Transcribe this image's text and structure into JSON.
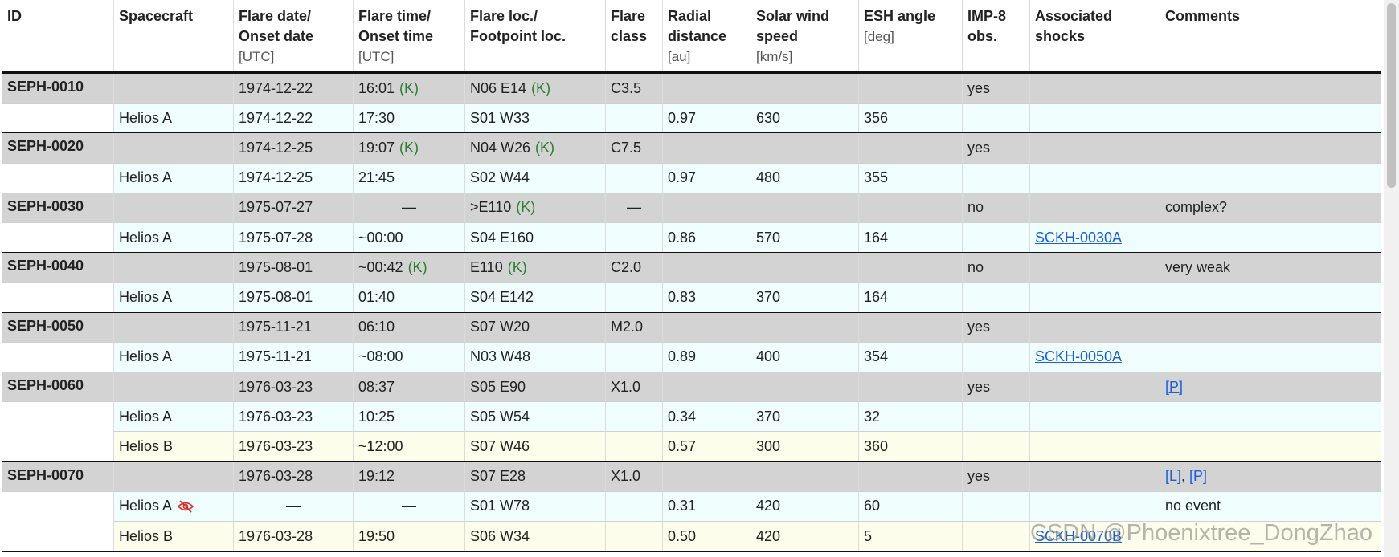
{
  "table": {
    "columns": [
      {
        "title": [
          "ID"
        ]
      },
      {
        "title": [
          "Spacecraft"
        ]
      },
      {
        "title": [
          "Flare date/",
          "Onset date"
        ],
        "unit": "[UTC]"
      },
      {
        "title": [
          "Flare time/",
          "Onset time"
        ],
        "unit": "[UTC]"
      },
      {
        "title": [
          "Flare loc./",
          "Footpoint loc."
        ]
      },
      {
        "title": [
          "Flare",
          "class"
        ]
      },
      {
        "title": [
          "Radial",
          "distance"
        ],
        "unit": "[au]"
      },
      {
        "title": [
          "Solar wind",
          "speed"
        ],
        "unit": "[km/s]"
      },
      {
        "title": [
          "ESH angle"
        ],
        "unit": "[deg]"
      },
      {
        "title": [
          "IMP-8",
          "obs."
        ]
      },
      {
        "title": [
          "Associated",
          "shocks"
        ]
      },
      {
        "title": [
          "Comments"
        ]
      }
    ],
    "event_color": "#d3d3d3",
    "groups": [
      {
        "event": [
          "SEPH-0010",
          null,
          "1974-12-22",
          {
            "text": "16:01",
            "note": "(K)"
          },
          {
            "text": "N06 E14",
            "note": "(K)"
          },
          "C3.5",
          null,
          null,
          null,
          "yes",
          null,
          null
        ],
        "spacecraft": [
          {
            "color": "#effdfd",
            "cells": [
              null,
              "Helios A",
              "1974-12-22",
              "17:30",
              "S01 W33",
              null,
              "0.97",
              "630",
              "356",
              null,
              null,
              null
            ]
          }
        ]
      },
      {
        "event": [
          "SEPH-0020",
          null,
          "1974-12-25",
          {
            "text": "19:07",
            "note": "(K)"
          },
          {
            "text": "N04 W26",
            "note": "(K)"
          },
          "C7.5",
          null,
          null,
          null,
          "yes",
          null,
          null
        ],
        "spacecraft": [
          {
            "color": "#effdfd",
            "cells": [
              null,
              "Helios A",
              "1974-12-25",
              "21:45",
              "S02 W44",
              null,
              "0.97",
              "480",
              "355",
              null,
              null,
              null
            ]
          }
        ]
      },
      {
        "event": [
          "SEPH-0030",
          null,
          "1975-07-27",
          {
            "text": "—",
            "align": "center"
          },
          {
            "text": ">E110",
            "note": "(K)"
          },
          {
            "text": "—",
            "align": "center"
          },
          null,
          null,
          null,
          "no",
          null,
          "complex?"
        ],
        "spacecraft": [
          {
            "color": "#effdfd",
            "cells": [
              null,
              "Helios A",
              "1975-07-28",
              "~00:00",
              "S04 E160",
              null,
              "0.86",
              "570",
              "164",
              null,
              {
                "links": [
                  "SCKH-0030A"
                ]
              },
              null
            ]
          }
        ]
      },
      {
        "event": [
          "SEPH-0040",
          null,
          "1975-08-01",
          {
            "text": "~00:42",
            "note": "(K)"
          },
          {
            "text": "E110",
            "note": "(K)"
          },
          "C2.0",
          null,
          null,
          null,
          "no",
          null,
          "very weak"
        ],
        "spacecraft": [
          {
            "color": "#effdfd",
            "cells": [
              null,
              "Helios A",
              "1975-08-01",
              "01:40",
              "S04 E142",
              null,
              "0.83",
              "370",
              "164",
              null,
              null,
              null
            ]
          }
        ]
      },
      {
        "event": [
          "SEPH-0050",
          null,
          "1975-11-21",
          "06:10",
          "S07 W20",
          "M2.0",
          null,
          null,
          null,
          "yes",
          null,
          null
        ],
        "spacecraft": [
          {
            "color": "#effdfd",
            "cells": [
              null,
              "Helios A",
              "1975-11-21",
              "~08:00",
              "N03 W48",
              null,
              "0.89",
              "400",
              "354",
              null,
              {
                "links": [
                  "SCKH-0050A"
                ]
              },
              null
            ]
          }
        ]
      },
      {
        "event": [
          "SEPH-0060",
          null,
          "1976-03-23",
          "08:37",
          "S05 E90",
          "X1.0",
          null,
          null,
          null,
          "yes",
          null,
          {
            "links": [
              "[P]"
            ]
          }
        ],
        "spacecraft": [
          {
            "color": "#effdfd",
            "cells": [
              null,
              "Helios A",
              "1976-03-23",
              "10:25",
              "S05 W54",
              null,
              "0.34",
              "370",
              "32",
              null,
              null,
              null
            ]
          },
          {
            "color": "#fdfdeb",
            "cells": [
              null,
              "Helios B",
              "1976-03-23",
              "~12:00",
              "S07 W46",
              null,
              "0.57",
              "300",
              "360",
              null,
              null,
              null
            ]
          }
        ]
      },
      {
        "event": [
          "SEPH-0070",
          null,
          "1976-03-28",
          "19:12",
          "S07 E28",
          "X1.0",
          null,
          null,
          null,
          "yes",
          null,
          {
            "links": [
              "[L]",
              "[P]"
            ],
            "sep": ", "
          }
        ],
        "spacecraft": [
          {
            "color": "#effdfd",
            "cells": [
              null,
              {
                "text": "Helios A",
                "icon": true
              },
              {
                "text": "—",
                "align": "center"
              },
              {
                "text": "—",
                "align": "center"
              },
              "S01 W78",
              null,
              "0.31",
              "420",
              "60",
              null,
              null,
              "no event"
            ]
          },
          {
            "color": "#fdfdeb",
            "cells": [
              null,
              "Helios B",
              "1976-03-28",
              "19:50",
              "S06 W34",
              null,
              "0.50",
              "420",
              "5",
              null,
              {
                "links": [
                  "SCKH-0070B"
                ]
              },
              null
            ]
          }
        ]
      }
    ]
  },
  "watermark": "CSDN @Phoenixtree_DongZhao"
}
